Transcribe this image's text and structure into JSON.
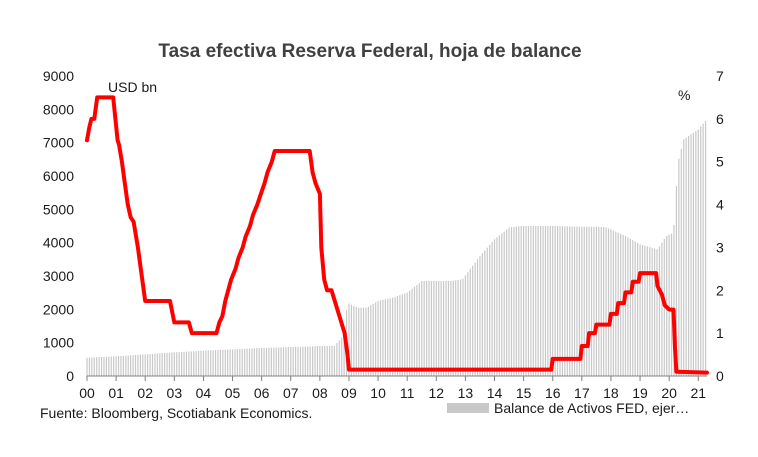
{
  "chart_data": {
    "type": "bar+line",
    "title": "Tasa efectiva Reserva Federal, hoja de balance",
    "left_axis": {
      "unit_label": "USD bn",
      "ylim": [
        0,
        9000
      ],
      "ticks": [
        "0",
        "1000",
        "2000",
        "3000",
        "4000",
        "5000",
        "6000",
        "7000",
        "8000",
        "9000"
      ]
    },
    "right_axis": {
      "unit_label": "%",
      "ylim": [
        0,
        7
      ],
      "ticks": [
        "0",
        "1",
        "2",
        "3",
        "4",
        "5",
        "6",
        "7"
      ]
    },
    "x_axis": {
      "xlim": [
        2000,
        2021.3
      ],
      "tick_labels": [
        "00",
        "01",
        "02",
        "03",
        "04",
        "05",
        "06",
        "07",
        "08",
        "09",
        "10",
        "11",
        "12",
        "13",
        "14",
        "15",
        "16",
        "17",
        "18",
        "19",
        "20",
        "21"
      ]
    },
    "legend": {
      "placement": "bottom-right"
    },
    "source": "Fuente: Bloomberg, Scotiabank Economics.",
    "series": [
      {
        "name": "Balance de Activos FED, ejer…",
        "kind": "bar",
        "axis": "left",
        "color": "#c8c8c8",
        "x": [
          2000.0,
          2001.0,
          2002.0,
          2003.0,
          2004.0,
          2005.0,
          2006.0,
          2007.0,
          2007.5,
          2008.0,
          2008.5,
          2008.8,
          2008.95,
          2009.3,
          2009.6,
          2010.0,
          2010.5,
          2011.0,
          2011.5,
          2012.0,
          2012.5,
          2012.9,
          2013.5,
          2014.0,
          2014.5,
          2014.9,
          2015.5,
          2016.0,
          2017.0,
          2017.8,
          2018.0,
          2018.5,
          2019.0,
          2019.6,
          2019.9,
          2020.15,
          2020.3,
          2020.5,
          2021.0,
          2021.3
        ],
        "values": [
          550,
          590,
          650,
          710,
          760,
          800,
          840,
          870,
          880,
          900,
          910,
          1200,
          2200,
          2050,
          2050,
          2250,
          2350,
          2500,
          2850,
          2850,
          2850,
          2900,
          3600,
          4100,
          4450,
          4500,
          4500,
          4500,
          4480,
          4470,
          4400,
          4200,
          3950,
          3800,
          4200,
          4300,
          6400,
          7100,
          7400,
          7700
        ]
      },
      {
        "name": "Tasa efectiva",
        "kind": "line",
        "axis": "right",
        "color": "#ff0000",
        "x": [
          2000.0,
          2000.08,
          2000.15,
          2000.25,
          2000.35,
          2000.45,
          2000.9,
          2001.05,
          2001.1,
          2001.2,
          2001.3,
          2001.4,
          2001.5,
          2001.6,
          2001.75,
          2001.85,
          2002.0,
          2002.85,
          2003.0,
          2003.5,
          2003.6,
          2004.45,
          2004.55,
          2004.65,
          2004.75,
          2004.85,
          2004.95,
          2005.1,
          2005.2,
          2005.35,
          2005.45,
          2005.6,
          2005.7,
          2005.85,
          2006.0,
          2006.1,
          2006.2,
          2006.35,
          2006.45,
          2006.55,
          2006.6,
          2007.65,
          2007.75,
          2007.85,
          2008.0,
          2008.05,
          2008.15,
          2008.25,
          2008.4,
          2008.85,
          2008.95,
          2009.0,
          2015.95,
          2016.0,
          2016.95,
          2017.0,
          2017.2,
          2017.25,
          2017.45,
          2017.5,
          2017.95,
          2018.0,
          2018.2,
          2018.25,
          2018.45,
          2018.5,
          2018.7,
          2018.75,
          2018.95,
          2019.0,
          2019.55,
          2019.6,
          2019.75,
          2019.85,
          2020.0,
          2020.15,
          2020.2,
          2020.25,
          2021.3
        ],
        "values": [
          5.5,
          5.8,
          6.0,
          6.0,
          6.5,
          6.5,
          6.5,
          5.5,
          5.4,
          5.0,
          4.5,
          4.0,
          3.7,
          3.6,
          3.0,
          2.5,
          1.75,
          1.75,
          1.25,
          1.25,
          1.0,
          1.0,
          1.25,
          1.4,
          1.75,
          2.0,
          2.25,
          2.5,
          2.75,
          3.0,
          3.25,
          3.5,
          3.75,
          4.0,
          4.3,
          4.5,
          4.75,
          5.0,
          5.25,
          5.25,
          5.25,
          5.25,
          4.75,
          4.5,
          4.25,
          3.0,
          2.25,
          2.0,
          2.0,
          1.0,
          0.5,
          0.15,
          0.15,
          0.4,
          0.4,
          0.7,
          0.7,
          1.0,
          1.0,
          1.2,
          1.2,
          1.45,
          1.45,
          1.7,
          1.7,
          1.95,
          1.95,
          2.2,
          2.2,
          2.4,
          2.4,
          2.1,
          1.9,
          1.65,
          1.55,
          1.55,
          0.65,
          0.1,
          0.08
        ]
      }
    ]
  }
}
